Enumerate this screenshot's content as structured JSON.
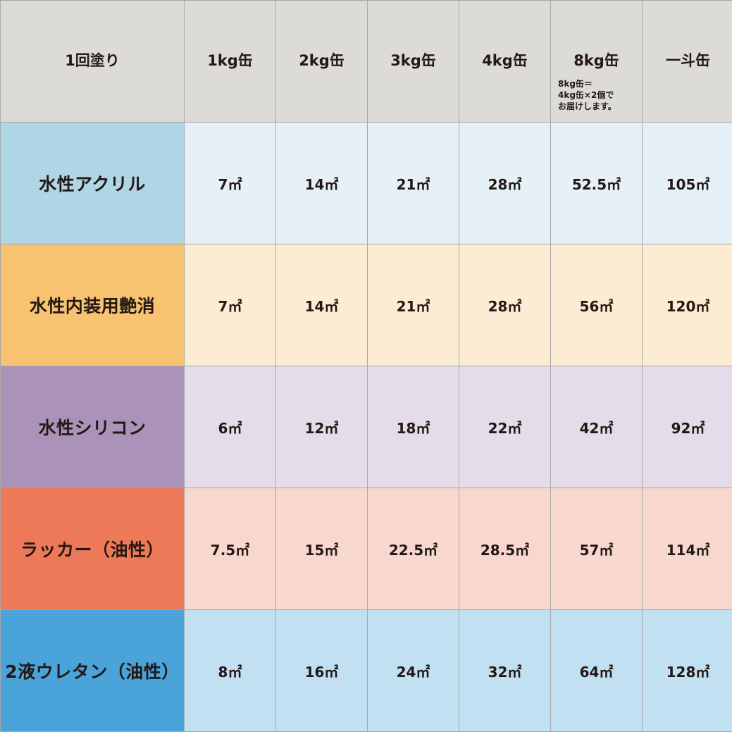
{
  "header": {
    "corner": "1回塗り",
    "columns": [
      "1kg缶",
      "2kg缶",
      "3kg缶",
      "4kg缶",
      "8kg缶",
      "一斗缶"
    ],
    "note_8kg": [
      "8kg缶＝",
      "4kg缶×2個で",
      "お届けします。"
    ]
  },
  "rows": [
    {
      "label": "水性アクリル",
      "values": [
        "7㎡",
        "14㎡",
        "21㎡",
        "28㎡",
        "52.5㎡",
        "105㎡"
      ],
      "label_color": "#afd6e4",
      "cell_color": "#e5f1f6"
    },
    {
      "label": "水性内装用艶消",
      "values": [
        "7㎡",
        "14㎡",
        "21㎡",
        "28㎡",
        "56㎡",
        "120㎡"
      ],
      "label_color": "#f8c370",
      "cell_color": "#fdecd4"
    },
    {
      "label": "水性シリコン",
      "values": [
        "6㎡",
        "12㎡",
        "18㎡",
        "22㎡",
        "42㎡",
        "92㎡"
      ],
      "label_color": "#ab92b8",
      "cell_color": "#e4dce9"
    },
    {
      "label": "ラッカー（油性）",
      "values": [
        "7.5㎡",
        "15㎡",
        "22.5㎡",
        "28.5㎡",
        "57㎡",
        "114㎡"
      ],
      "label_color": "#ee7959",
      "cell_color": "#f8d7ce"
    },
    {
      "label": "2液ウレタン（油性）",
      "values": [
        "8㎡",
        "16㎡",
        "24㎡",
        "32㎡",
        "64㎡",
        "128㎡"
      ],
      "label_color": "#4aa3d9",
      "cell_color": "#c1e0f2"
    }
  ]
}
